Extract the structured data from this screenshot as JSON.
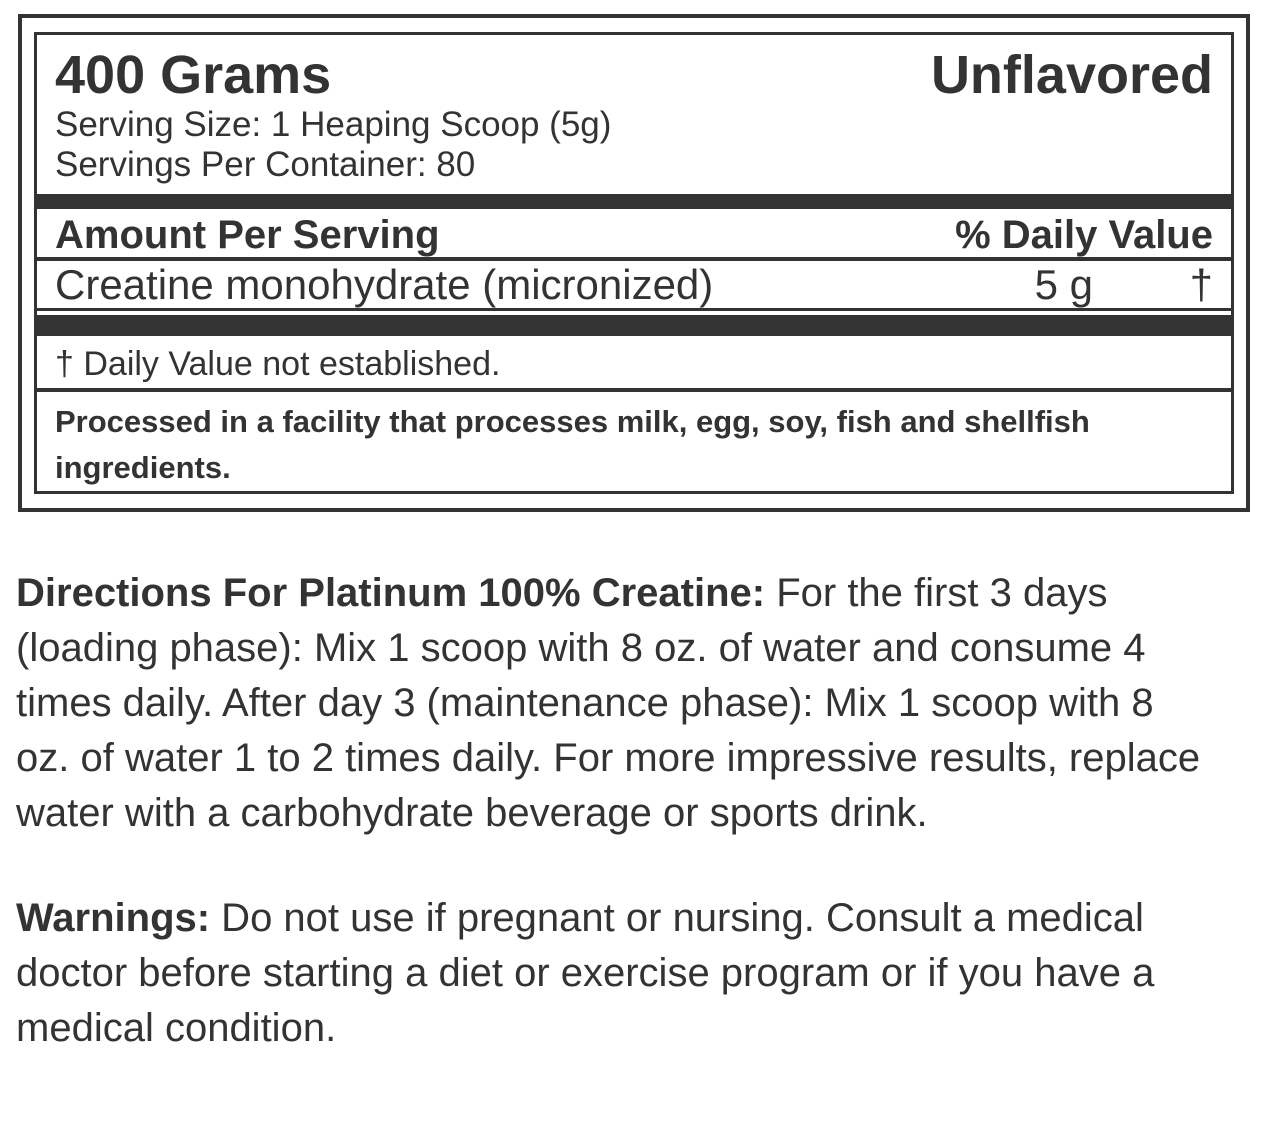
{
  "label": {
    "net_weight": "400 Grams",
    "flavor": "Unflavored",
    "serving_size": "Serving Size: 1 Heaping Scoop (5g)",
    "servings_per_container": "Servings Per Container: 80",
    "columns": {
      "amount_header": "Amount Per Serving",
      "daily_value_header": "% Daily Value"
    },
    "nutrients": [
      {
        "name": "Creatine monohydrate (micronized)",
        "amount": "5 g",
        "daily_value": "†"
      }
    ],
    "footnote": "† Daily Value not established.",
    "allergen_notice": "Processed in a facility that processes milk, egg, soy, fish and shellfish ingredients."
  },
  "directions": {
    "heading": "Directions For Platinum 100% Creatine:",
    "body": " For the first 3 days (loading phase): Mix 1 scoop with 8 oz. of water and consume 4 times daily. After day 3 (maintenance phase): Mix 1 scoop with 8 oz. of water 1 to 2 times daily. For more impressive results, replace water with a carbohydrate beverage or sports drink."
  },
  "warnings": {
    "heading": "Warnings:",
    "body": " Do not use if pregnant or nursing. Consult a medical doctor before starting a diet or exercise program or if you have a medical condition."
  },
  "colors": {
    "ink": "#333333",
    "background": "#ffffff"
  }
}
